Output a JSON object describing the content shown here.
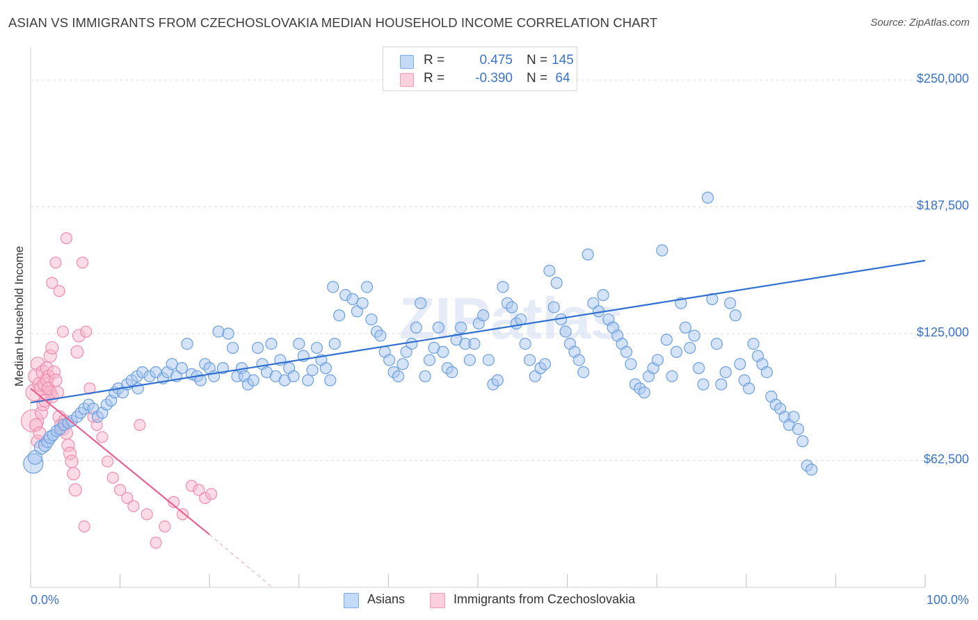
{
  "title": "ASIAN VS IMMIGRANTS FROM CZECHOSLOVAKIA MEDIAN HOUSEHOLD INCOME CORRELATION CHART",
  "source": "Source: ZipAtlas.com",
  "watermark": "ZIPatlas",
  "legend": [
    {
      "r_label": "R =",
      "r_value": "0.475",
      "n_label": "N =",
      "n_value": "145",
      "color": "#a9c8f0"
    },
    {
      "r_label": "R =",
      "r_value": "-0.390",
      "n_label": "N =",
      "n_value": "64",
      "color": "#f7b8cc"
    }
  ],
  "chart_data": {
    "type": "scatter",
    "xlabel": "",
    "ylabel": "Median Household Income",
    "x_range": [
      0,
      100
    ],
    "y_range": [
      0,
      250000
    ],
    "x_tick_labels": [
      "0.0%",
      "100.0%"
    ],
    "y_tick_labels": [
      "$62,500",
      "$125,000",
      "$187,500",
      "$250,000"
    ],
    "y_ticks": [
      62500,
      125000,
      187500,
      250000
    ],
    "grid": "horizontal dashed",
    "legend_placement": "bottom",
    "series": [
      {
        "name": "Asians",
        "color": "#6a9ee0",
        "fill": "#a9c8f0",
        "trend": {
          "x": [
            0,
            100
          ],
          "y": [
            91000,
            161000
          ],
          "color": "#2f6fd0"
        },
        "points": [
          [
            0.3,
            61000,
            14
          ],
          [
            0.5,
            64000,
            10
          ],
          [
            1.2,
            69000,
            10
          ],
          [
            1.6,
            70000,
            9
          ],
          [
            1.9,
            72000,
            9
          ],
          [
            2.2,
            74000,
            9
          ],
          [
            2.5,
            75000,
            8
          ],
          [
            2.9,
            77000,
            8
          ],
          [
            3.3,
            78000,
            8
          ],
          [
            3.7,
            80000,
            8
          ],
          [
            4.2,
            81000,
            8
          ],
          [
            4.6,
            82000,
            8
          ],
          [
            5.2,
            84000,
            8
          ],
          [
            5.6,
            86000,
            8
          ],
          [
            6.0,
            88000,
            8
          ],
          [
            6.5,
            90000,
            8
          ],
          [
            7.0,
            88000,
            8
          ],
          [
            7.5,
            84000,
            8
          ],
          [
            8.0,
            86000,
            8
          ],
          [
            8.5,
            90000,
            8
          ],
          [
            9.0,
            92000,
            8
          ],
          [
            9.4,
            96000,
            8
          ],
          [
            9.8,
            98000,
            8
          ],
          [
            10.3,
            96000,
            8
          ],
          [
            10.8,
            100000,
            8
          ],
          [
            11.3,
            102000,
            8
          ],
          [
            11.9,
            104000,
            8
          ],
          [
            12.5,
            106000,
            8
          ],
          [
            12.0,
            98000,
            8
          ],
          [
            13.3,
            104000,
            8
          ],
          [
            14.0,
            106000,
            8
          ],
          [
            14.8,
            103000,
            8
          ],
          [
            15.3,
            106000,
            8
          ],
          [
            15.8,
            110000,
            8
          ],
          [
            16.3,
            104000,
            8
          ],
          [
            16.9,
            108000,
            8
          ],
          [
            17.5,
            120000,
            8
          ],
          [
            18.0,
            105000,
            8
          ],
          [
            18.6,
            104000,
            8
          ],
          [
            19.0,
            102000,
            8
          ],
          [
            19.5,
            110000,
            8
          ],
          [
            20.0,
            108000,
            8
          ],
          [
            20.5,
            104000,
            8
          ],
          [
            21.0,
            126000,
            8
          ],
          [
            21.5,
            108000,
            8
          ],
          [
            22.1,
            125000,
            8
          ],
          [
            22.6,
            118000,
            8
          ],
          [
            23.1,
            104000,
            8
          ],
          [
            23.6,
            108000,
            8
          ],
          [
            23.9,
            104000,
            8
          ],
          [
            24.3,
            100000,
            8
          ],
          [
            24.9,
            102000,
            8
          ],
          [
            25.4,
            118000,
            8
          ],
          [
            25.9,
            110000,
            8
          ],
          [
            26.4,
            106000,
            8
          ],
          [
            26.9,
            120000,
            8
          ],
          [
            27.4,
            104000,
            8
          ],
          [
            27.9,
            112000,
            8
          ],
          [
            28.4,
            102000,
            8
          ],
          [
            28.9,
            108000,
            8
          ],
          [
            29.4,
            104000,
            8
          ],
          [
            30.0,
            120000,
            8
          ],
          [
            30.5,
            114000,
            8
          ],
          [
            31.0,
            102000,
            8
          ],
          [
            31.5,
            107000,
            8
          ],
          [
            32.0,
            118000,
            8
          ],
          [
            32.5,
            112000,
            8
          ],
          [
            33.0,
            108000,
            8
          ],
          [
            33.5,
            102000,
            8
          ],
          [
            34.0,
            120000,
            8
          ],
          [
            33.8,
            148000,
            8
          ],
          [
            34.5,
            134000,
            8
          ],
          [
            35.2,
            144000,
            8
          ],
          [
            36.0,
            142000,
            8
          ],
          [
            36.5,
            136000,
            8
          ],
          [
            37.1,
            140000,
            8
          ],
          [
            37.6,
            148000,
            8
          ],
          [
            38.1,
            132000,
            8
          ],
          [
            38.7,
            126000,
            8
          ],
          [
            39.1,
            124000,
            8
          ],
          [
            39.6,
            116000,
            8
          ],
          [
            40.1,
            112000,
            8
          ],
          [
            40.6,
            106000,
            8
          ],
          [
            41.1,
            104000,
            8
          ],
          [
            41.6,
            110000,
            8
          ],
          [
            42.0,
            116000,
            8
          ],
          [
            42.6,
            120000,
            8
          ],
          [
            43.1,
            128000,
            8
          ],
          [
            43.6,
            140000,
            8
          ],
          [
            44.1,
            104000,
            8
          ],
          [
            44.6,
            112000,
            8
          ],
          [
            45.1,
            118000,
            8
          ],
          [
            45.6,
            128000,
            8
          ],
          [
            46.1,
            116000,
            8
          ],
          [
            46.6,
            108000,
            8
          ],
          [
            47.1,
            106000,
            8
          ],
          [
            47.6,
            122000,
            8
          ],
          [
            48.1,
            128000,
            8
          ],
          [
            48.6,
            120000,
            8
          ],
          [
            49.1,
            112000,
            8
          ],
          [
            49.6,
            120000,
            8
          ],
          [
            50.1,
            130000,
            8
          ],
          [
            50.6,
            134000,
            8
          ],
          [
            51.2,
            112000,
            8
          ],
          [
            51.7,
            100000,
            8
          ],
          [
            52.2,
            102000,
            8
          ],
          [
            52.8,
            148000,
            8
          ],
          [
            53.3,
            140000,
            8
          ],
          [
            53.8,
            138000,
            8
          ],
          [
            54.3,
            130000,
            8
          ],
          [
            54.8,
            132000,
            8
          ],
          [
            55.3,
            120000,
            8
          ],
          [
            55.8,
            112000,
            8
          ],
          [
            56.4,
            104000,
            8
          ],
          [
            57.0,
            108000,
            8
          ],
          [
            57.5,
            110000,
            8
          ],
          [
            58.0,
            156000,
            8
          ],
          [
            58.5,
            138000,
            8
          ],
          [
            58.8,
            150000,
            8
          ],
          [
            59.3,
            132000,
            8
          ],
          [
            59.8,
            126000,
            8
          ],
          [
            60.3,
            120000,
            8
          ],
          [
            60.8,
            116000,
            8
          ],
          [
            61.3,
            112000,
            8
          ],
          [
            61.8,
            106000,
            8
          ],
          [
            62.3,
            164000,
            8
          ],
          [
            62.9,
            140000,
            8
          ],
          [
            63.5,
            136000,
            8
          ],
          [
            64.0,
            144000,
            8
          ],
          [
            64.6,
            132000,
            8
          ],
          [
            65.1,
            128000,
            8
          ],
          [
            65.6,
            124000,
            8
          ],
          [
            66.1,
            120000,
            8
          ],
          [
            66.6,
            116000,
            8
          ],
          [
            67.1,
            110000,
            8
          ],
          [
            67.6,
            100000,
            8
          ],
          [
            68.1,
            98000,
            8
          ],
          [
            68.6,
            96000,
            8
          ],
          [
            69.1,
            104000,
            8
          ],
          [
            69.6,
            108000,
            8
          ],
          [
            70.1,
            112000,
            8
          ],
          [
            70.6,
            166000,
            8
          ],
          [
            71.1,
            122000,
            8
          ],
          [
            71.7,
            104000,
            8
          ],
          [
            72.2,
            116000,
            8
          ],
          [
            72.7,
            140000,
            8
          ],
          [
            73.2,
            128000,
            8
          ],
          [
            73.7,
            118000,
            8
          ],
          [
            74.2,
            124000,
            8
          ],
          [
            74.7,
            108000,
            8
          ],
          [
            75.2,
            100000,
            8
          ],
          [
            75.7,
            192000,
            8
          ],
          [
            76.2,
            142000,
            8
          ],
          [
            76.7,
            120000,
            8
          ],
          [
            77.2,
            100000,
            8
          ],
          [
            77.7,
            106000,
            8
          ],
          [
            78.2,
            140000,
            8
          ],
          [
            78.8,
            134000,
            8
          ],
          [
            79.3,
            110000,
            8
          ],
          [
            79.8,
            102000,
            8
          ],
          [
            80.3,
            98000,
            8
          ],
          [
            80.8,
            120000,
            8
          ],
          [
            81.3,
            114000,
            8
          ],
          [
            81.8,
            110000,
            8
          ],
          [
            82.3,
            106000,
            8
          ],
          [
            82.8,
            94000,
            8
          ],
          [
            83.3,
            90000,
            8
          ],
          [
            83.8,
            88000,
            8
          ],
          [
            84.3,
            84000,
            8
          ],
          [
            84.8,
            80000,
            8
          ],
          [
            85.3,
            84000,
            8
          ],
          [
            85.8,
            78000,
            8
          ],
          [
            86.3,
            72000,
            8
          ],
          [
            86.8,
            60000,
            8
          ],
          [
            87.3,
            58000,
            8
          ]
        ]
      },
      {
        "name": "Immigrants from Czechoslovakia",
        "color": "#f08cb0",
        "fill": "#f7b8cc",
        "trend": {
          "x": [
            0,
            20
          ],
          "y": [
            98000,
            26000
          ],
          "dash_to": [
            27,
            0
          ],
          "color": "#e8608f"
        },
        "points": [
          [
            0.2,
            82000,
            16
          ],
          [
            0.4,
            96000,
            12
          ],
          [
            0.6,
            104000,
            11
          ],
          [
            0.8,
            110000,
            10
          ],
          [
            1.0,
            100000,
            10
          ],
          [
            1.2,
            98000,
            10
          ],
          [
            1.4,
            106000,
            10
          ],
          [
            1.6,
            100000,
            10
          ],
          [
            1.8,
            108000,
            9
          ],
          [
            2.0,
            104000,
            9
          ],
          [
            2.2,
            96000,
            9
          ],
          [
            2.4,
            94000,
            9
          ],
          [
            0.6,
            80000,
            9
          ],
          [
            0.8,
            72000,
            9
          ],
          [
            1.0,
            76000,
            9
          ],
          [
            1.2,
            86000,
            9
          ],
          [
            1.4,
            90000,
            9
          ],
          [
            1.6,
            92000,
            9
          ],
          [
            1.8,
            102000,
            9
          ],
          [
            2.0,
            98000,
            9
          ],
          [
            2.2,
            114000,
            9
          ],
          [
            2.4,
            118000,
            9
          ],
          [
            2.6,
            106000,
            9
          ],
          [
            2.8,
            102000,
            9
          ],
          [
            3.0,
            96000,
            9
          ],
          [
            3.2,
            84000,
            9
          ],
          [
            3.4,
            80000,
            9
          ],
          [
            3.6,
            78000,
            9
          ],
          [
            3.8,
            82000,
            9
          ],
          [
            4.0,
            76000,
            9
          ],
          [
            4.2,
            70000,
            9
          ],
          [
            4.4,
            66000,
            9
          ],
          [
            4.6,
            62000,
            9
          ],
          [
            4.8,
            56000,
            9
          ],
          [
            5.0,
            48000,
            9
          ],
          [
            5.2,
            116000,
            9
          ],
          [
            5.4,
            124000,
            9
          ],
          [
            2.4,
            150000,
            8
          ],
          [
            2.8,
            160000,
            8
          ],
          [
            3.2,
            146000,
            8
          ],
          [
            3.6,
            126000,
            8
          ],
          [
            4.0,
            172000,
            8
          ],
          [
            5.8,
            160000,
            8
          ],
          [
            6.2,
            126000,
            8
          ],
          [
            6.6,
            98000,
            8
          ],
          [
            7.0,
            84000,
            8
          ],
          [
            7.4,
            80000,
            8
          ],
          [
            8.0,
            74000,
            8
          ],
          [
            8.6,
            62000,
            8
          ],
          [
            9.2,
            54000,
            8
          ],
          [
            10.0,
            48000,
            8
          ],
          [
            10.8,
            44000,
            8
          ],
          [
            11.5,
            40000,
            8
          ],
          [
            12.2,
            80000,
            8
          ],
          [
            13.0,
            36000,
            8
          ],
          [
            14.0,
            22000,
            8
          ],
          [
            15.0,
            30000,
            8
          ],
          [
            16.0,
            42000,
            8
          ],
          [
            17.0,
            36000,
            8
          ],
          [
            18.0,
            50000,
            8
          ],
          [
            18.8,
            48000,
            8
          ],
          [
            19.5,
            44000,
            8
          ],
          [
            20.2,
            46000,
            8
          ],
          [
            6.0,
            30000,
            8
          ]
        ]
      }
    ]
  }
}
